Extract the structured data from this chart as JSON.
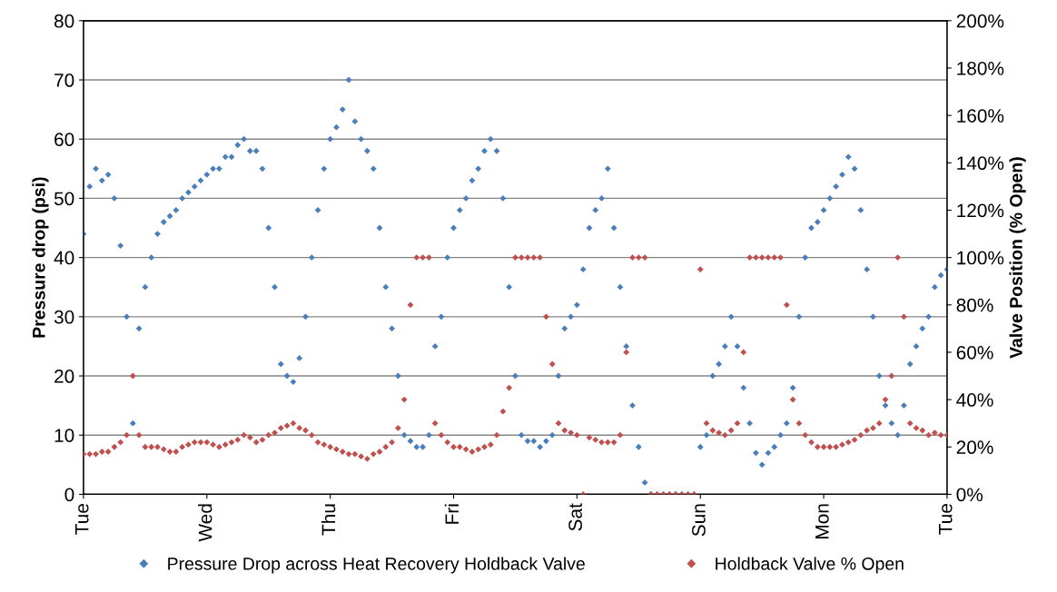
{
  "chart_data": {
    "type": "scatter",
    "ylabel": "Pressure drop (psi)",
    "y2label": "Valve Position (% Open)",
    "categories": [
      "Tue",
      null,
      null,
      null,
      null,
      null,
      null,
      null,
      null,
      null,
      null,
      null,
      null,
      null,
      null,
      null,
      null,
      null,
      null,
      null,
      "Wed",
      null,
      null,
      null,
      null,
      null,
      null,
      null,
      null,
      null,
      null,
      null,
      null,
      null,
      null,
      null,
      null,
      null,
      null,
      null,
      "Thu",
      null,
      null,
      null,
      null,
      null,
      null,
      null,
      null,
      null,
      null,
      null,
      null,
      null,
      null,
      null,
      null,
      null,
      null,
      null,
      "Fri",
      null,
      null,
      null,
      null,
      null,
      null,
      null,
      null,
      null,
      null,
      null,
      null,
      null,
      null,
      null,
      null,
      null,
      null,
      null,
      "Sat",
      null,
      null,
      null,
      null,
      null,
      null,
      null,
      null,
      null,
      null,
      null,
      null,
      null,
      null,
      null,
      null,
      null,
      null,
      null,
      "Sun",
      null,
      null,
      null,
      null,
      null,
      null,
      null,
      null,
      null,
      null,
      null,
      null,
      null,
      null,
      null,
      null,
      null,
      null,
      null,
      "Mon",
      null,
      null,
      null,
      null,
      null,
      null,
      null,
      null,
      null,
      null,
      null,
      null,
      null,
      null,
      null,
      null,
      null,
      null,
      null,
      "Tue"
    ],
    "ylim": [
      0,
      80
    ],
    "yticks": [
      0,
      10,
      20,
      30,
      40,
      50,
      60,
      70,
      80
    ],
    "y2lim": [
      0,
      200
    ],
    "y2ticks": [
      {
        "value": 0,
        "label": "0%"
      },
      {
        "value": 20,
        "label": "20%"
      },
      {
        "value": 40,
        "label": "40%"
      },
      {
        "value": 60,
        "label": "60%"
      },
      {
        "value": 80,
        "label": "80%"
      },
      {
        "value": 100,
        "label": "100%"
      },
      {
        "value": 120,
        "label": "120%"
      },
      {
        "value": 140,
        "label": "140%"
      },
      {
        "value": 160,
        "label": "160%"
      },
      {
        "value": 180,
        "label": "180%"
      },
      {
        "value": 200,
        "label": "200%"
      }
    ],
    "grid": "y",
    "legend": "bottom",
    "marker": "diamond",
    "series": [
      {
        "name": "Pressure Drop across Heat Recovery Holdback Valve",
        "color": "#4a7ebb",
        "values": [
          44,
          52,
          55,
          53,
          54,
          50,
          42,
          30,
          12,
          28,
          35,
          40,
          44,
          46,
          47,
          48,
          50,
          51,
          52,
          53,
          54,
          55,
          55,
          57,
          57,
          59,
          60,
          58,
          58,
          55,
          45,
          35,
          22,
          20,
          19,
          23,
          30,
          40,
          48,
          55,
          60,
          62,
          65,
          70,
          63,
          60,
          58,
          55,
          45,
          35,
          28,
          20,
          10,
          9,
          8,
          8,
          10,
          25,
          30,
          40,
          45,
          48,
          50,
          53,
          55,
          58,
          60,
          58,
          50,
          35,
          20,
          10,
          9,
          9,
          8,
          9,
          10,
          20,
          28,
          30,
          32,
          38,
          45,
          48,
          50,
          55,
          45,
          35,
          25,
          15,
          8,
          2,
          0,
          0,
          0,
          0,
          0,
          0,
          0,
          0,
          8,
          10,
          20,
          22,
          25,
          30,
          25,
          18,
          12,
          7,
          5,
          7,
          8,
          10,
          12,
          18,
          30,
          40,
          45,
          46,
          48,
          50,
          52,
          54,
          57,
          55,
          48,
          38,
          30,
          20,
          15,
          12,
          10,
          15,
          22,
          25,
          28,
          30,
          35,
          37,
          38
        ]
      },
      {
        "name": "Holdback Valve % Open",
        "color": "#c0504d",
        "axis": "y2",
        "values": [
          17,
          17,
          17,
          18,
          18,
          20,
          22,
          25,
          50,
          25,
          20,
          20,
          20,
          19,
          18,
          18,
          20,
          21,
          22,
          22,
          22,
          21,
          20,
          21,
          22,
          23,
          25,
          24,
          22,
          23,
          25,
          26,
          28,
          29,
          30,
          28,
          27,
          25,
          22,
          21,
          20,
          19,
          18,
          17,
          17,
          16,
          15,
          17,
          18,
          20,
          22,
          28,
          40,
          80,
          100,
          100,
          100,
          30,
          25,
          22,
          20,
          20,
          19,
          18,
          19,
          20,
          21,
          25,
          35,
          45,
          100,
          100,
          100,
          100,
          100,
          75,
          55,
          30,
          27,
          26,
          25,
          0,
          24,
          23,
          22,
          22,
          22,
          25,
          60,
          100,
          100,
          100,
          0,
          0,
          0,
          0,
          0,
          0,
          0,
          0,
          95,
          30,
          27,
          26,
          25,
          27,
          30,
          60,
          100,
          100,
          100,
          100,
          100,
          100,
          80,
          40,
          30,
          25,
          22,
          20,
          20,
          20,
          20,
          21,
          22,
          23,
          25,
          27,
          28,
          30,
          40,
          50,
          100,
          75,
          30,
          28,
          27,
          25,
          26,
          25,
          25
        ]
      }
    ]
  }
}
